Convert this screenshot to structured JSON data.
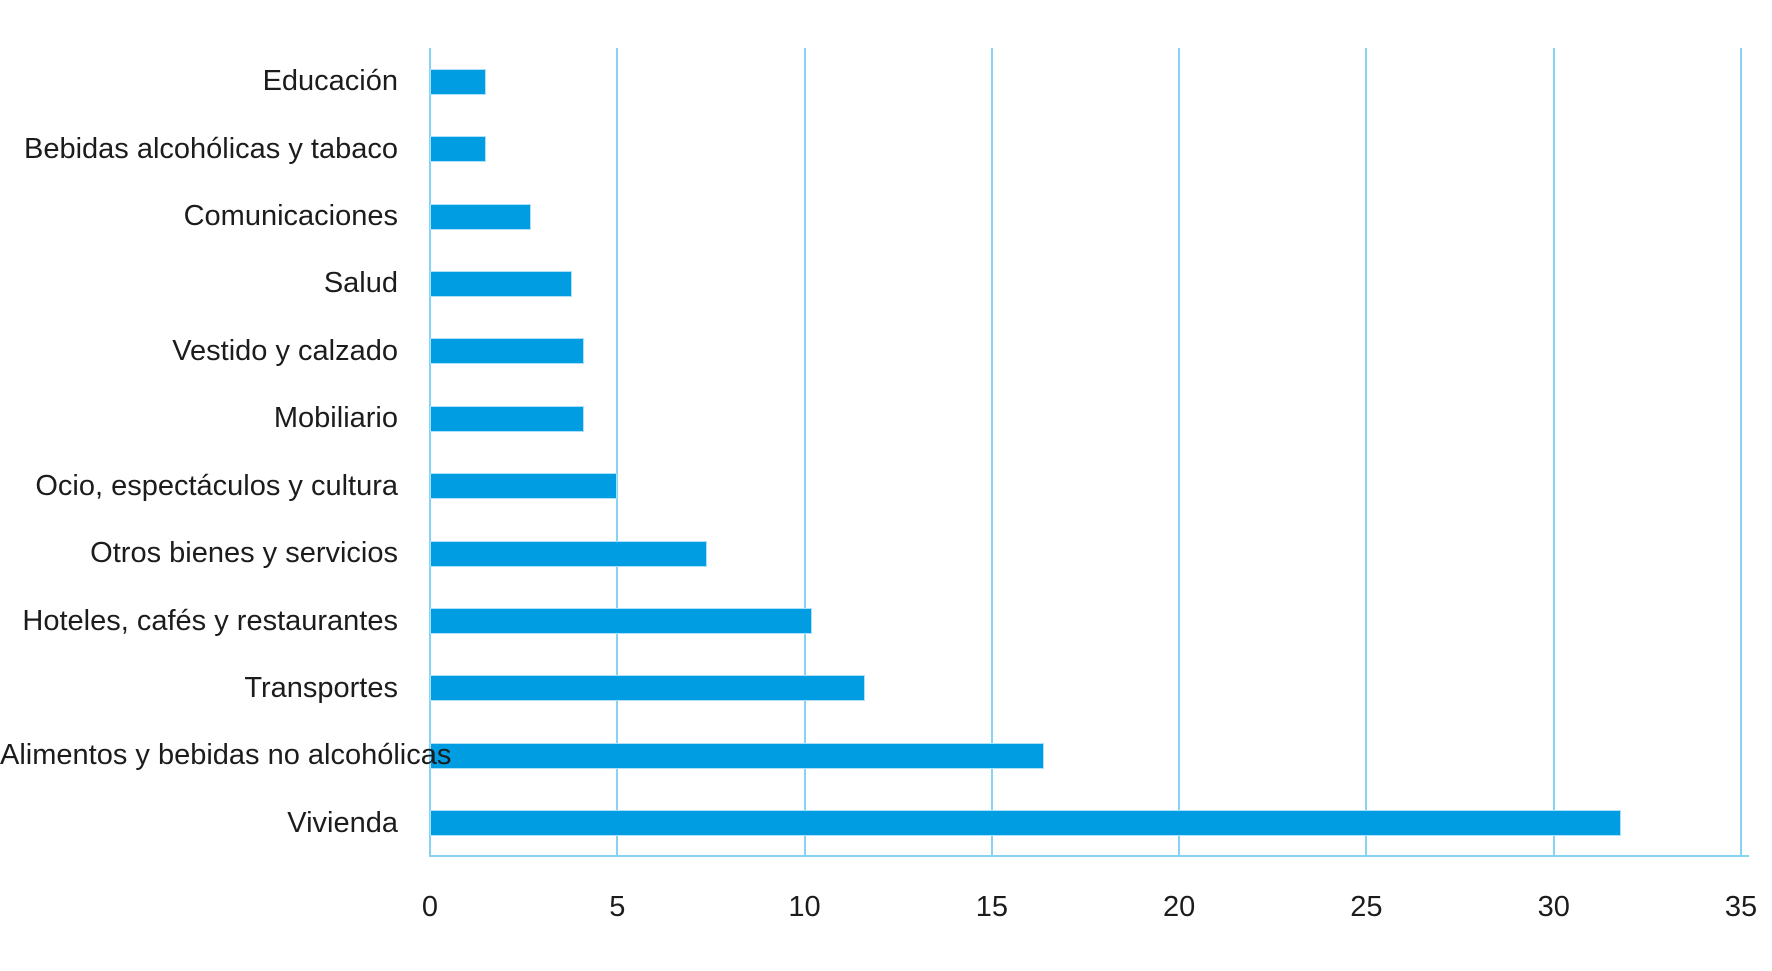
{
  "chart_data": {
    "type": "bar",
    "orientation": "horizontal",
    "title": "",
    "xlabel": "",
    "ylabel": "",
    "categories": [
      "Educación",
      "Bebidas alcohólicas y tabaco",
      "Comunicaciones",
      "Salud",
      "Vestido y calzado",
      "Mobiliario",
      "Ocio, espectáculos y cultura",
      "Otros bienes y servicios",
      "Hoteles, cafés y restaurantes",
      "Transportes",
      "Alimentos y bebidas no alcohólicas",
      "Vivienda"
    ],
    "values": [
      1.5,
      1.5,
      2.7,
      3.8,
      4.1,
      4.1,
      5.0,
      7.4,
      10.2,
      11.6,
      16.4,
      31.8
    ],
    "xlim": [
      0,
      35
    ],
    "x_ticks": [
      0,
      5,
      10,
      15,
      20,
      25,
      30,
      35
    ],
    "grid": "vertical-only",
    "legend": "none",
    "value_labels": "none",
    "colors": {
      "bar_fill": "#009de2",
      "bar_border": "#aee0f8",
      "gridline": "#87d3f3",
      "axis_line": "#87d3f3",
      "text": "#1c1c1c",
      "background": "#ffffff"
    }
  }
}
